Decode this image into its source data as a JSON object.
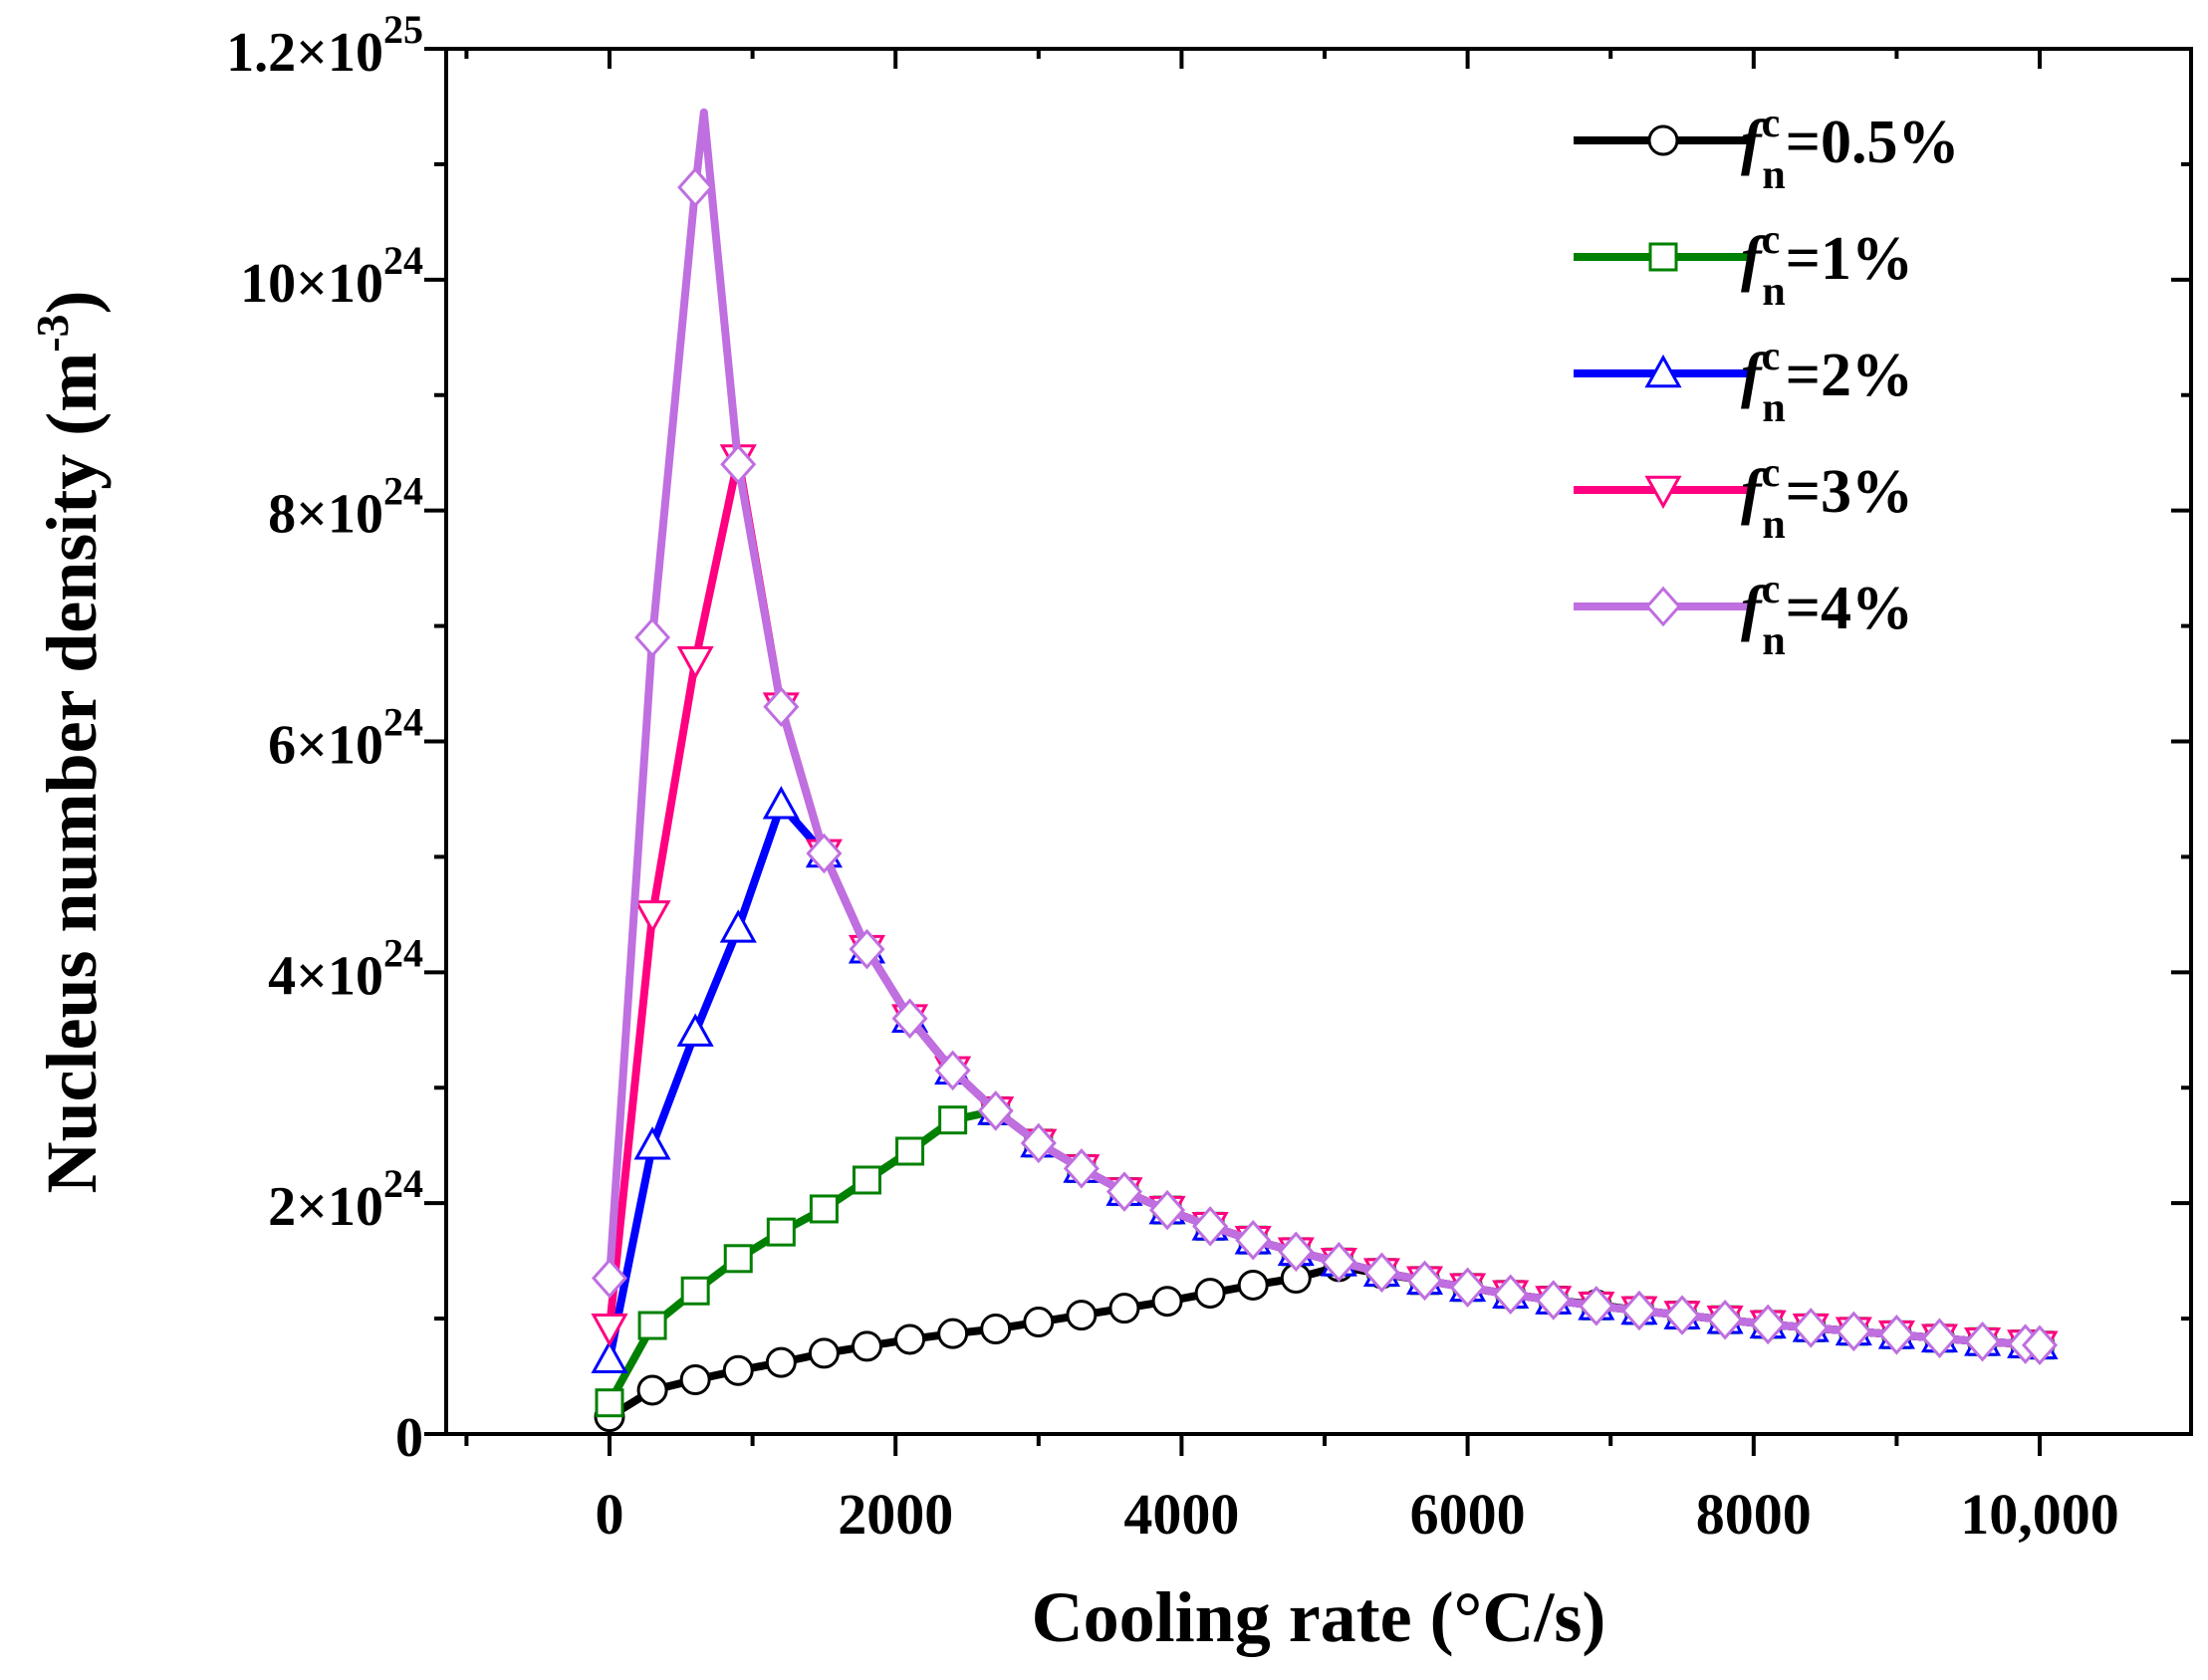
{
  "chart_data": {
    "type": "line",
    "title": "",
    "xlabel": "Cooling rate (°C/s)",
    "ylabel_main": "Nucleus number density (m",
    "ylabel_sup": "-3",
    "ylabel_tail": ")",
    "xlim": [
      -1000,
      10500
    ],
    "ylim": [
      0,
      12
    ],
    "y_scale_note": "values in units of 1e24 m^-3",
    "x_ticks": [
      {
        "value": 0,
        "label": "0"
      },
      {
        "value": 2000,
        "label": "2000"
      },
      {
        "value": 4000,
        "label": "4000"
      },
      {
        "value": 6000,
        "label": "6000"
      },
      {
        "value": 8000,
        "label": "8000"
      },
      {
        "value": 10000,
        "label": "10,000"
      }
    ],
    "y_ticks": [
      {
        "value": 0,
        "mant": "0",
        "exp": ""
      },
      {
        "value": 2,
        "mant": "2×10",
        "exp": "24"
      },
      {
        "value": 4,
        "mant": "4×10",
        "exp": "24"
      },
      {
        "value": 6,
        "mant": "6×10",
        "exp": "24"
      },
      {
        "value": 8,
        "mant": "8×10",
        "exp": "24"
      },
      {
        "value": 10,
        "mant": "10×10",
        "exp": "24"
      },
      {
        "value": 12,
        "mant": "1.2×10",
        "exp": "25"
      }
    ],
    "legend_position": "top-right",
    "series": [
      {
        "name": "f_n^c=0.5%",
        "legend_f": "f",
        "legend_sub": "n",
        "legend_sup": "c",
        "legend_rest": "=0.5%",
        "color": "#000000",
        "marker": "circle",
        "x": [
          0,
          300,
          600,
          900,
          1200,
          1500,
          1800,
          2100,
          2400,
          2700,
          3000,
          3300,
          3600,
          3900,
          4200,
          4500,
          4800,
          5100,
          5400,
          5700,
          6000,
          6300,
          6600,
          6900,
          7200,
          7500,
          7800,
          8100,
          8400,
          8700,
          9000,
          9300,
          9600,
          9900,
          10000
        ],
        "y": [
          0.15,
          0.38,
          0.47,
          0.55,
          0.62,
          0.7,
          0.76,
          0.82,
          0.87,
          0.91,
          0.97,
          1.03,
          1.09,
          1.15,
          1.22,
          1.29,
          1.35,
          1.45,
          1.39,
          1.33,
          1.27,
          1.21,
          1.16,
          1.12,
          1.07,
          1.03,
          0.99,
          0.95,
          0.92,
          0.89,
          0.86,
          0.83,
          0.8,
          0.78,
          0.77
        ]
      },
      {
        "name": "f_n^c=1%",
        "legend_f": "f",
        "legend_sub": "n",
        "legend_sup": "c",
        "legend_rest": "=1%",
        "color": "#008000",
        "marker": "square",
        "x": [
          0,
          300,
          600,
          900,
          1200,
          1500,
          1800,
          2100,
          2400,
          2700,
          3000,
          3300,
          3600,
          3900,
          4200,
          4500,
          4800,
          5100,
          5400,
          5700,
          6000,
          6300,
          6600,
          6900,
          7200,
          7500,
          7800,
          8100,
          8400,
          8700,
          9000,
          9300,
          9600,
          9900,
          10000
        ],
        "y": [
          0.27,
          0.94,
          1.24,
          1.52,
          1.75,
          1.95,
          2.2,
          2.45,
          2.72,
          2.8,
          2.52,
          2.3,
          2.1,
          1.94,
          1.8,
          1.68,
          1.58,
          1.49,
          1.4,
          1.33,
          1.27,
          1.21,
          1.16,
          1.11,
          1.07,
          1.03,
          0.99,
          0.95,
          0.92,
          0.89,
          0.86,
          0.83,
          0.8,
          0.78,
          0.77
        ]
      },
      {
        "name": "f_n^c=2%",
        "legend_f": "f",
        "legend_sub": "n",
        "legend_sup": "c",
        "legend_rest": "=2%",
        "color": "#0000ff",
        "marker": "triangle-up",
        "x": [
          0,
          300,
          600,
          900,
          1200,
          1500,
          1800,
          2100,
          2400,
          2700,
          3000,
          3300,
          3600,
          3900,
          4200,
          4500,
          4800,
          5100,
          5400,
          5700,
          6000,
          6300,
          6600,
          6900,
          7200,
          7500,
          7800,
          8100,
          8400,
          8700,
          9000,
          9300,
          9600,
          9900,
          10000
        ],
        "y": [
          0.65,
          2.5,
          3.48,
          4.38,
          5.45,
          5.03,
          4.2,
          3.6,
          3.15,
          2.8,
          2.52,
          2.3,
          2.1,
          1.94,
          1.8,
          1.68,
          1.58,
          1.49,
          1.4,
          1.33,
          1.27,
          1.21,
          1.16,
          1.11,
          1.07,
          1.03,
          0.99,
          0.95,
          0.92,
          0.89,
          0.86,
          0.83,
          0.8,
          0.78,
          0.77
        ]
      },
      {
        "name": "f_n^c=3%",
        "legend_f": "f",
        "legend_sub": "n",
        "legend_sup": "c",
        "legend_rest": "=3%",
        "color": "#ff0080",
        "marker": "triangle-down",
        "x": [
          0,
          300,
          600,
          900,
          1200,
          1500,
          1800,
          2100,
          2400,
          2700,
          3000,
          3300,
          3600,
          3900,
          4200,
          4500,
          4800,
          5100,
          5400,
          5700,
          6000,
          6300,
          6600,
          6900,
          7200,
          7500,
          7800,
          8100,
          8400,
          8700,
          9000,
          9300,
          9600,
          9900,
          10000
        ],
        "y": [
          0.92,
          4.5,
          6.7,
          8.45,
          6.3,
          5.03,
          4.2,
          3.6,
          3.15,
          2.8,
          2.52,
          2.3,
          2.1,
          1.94,
          1.8,
          1.68,
          1.58,
          1.49,
          1.4,
          1.33,
          1.27,
          1.21,
          1.16,
          1.11,
          1.07,
          1.03,
          0.99,
          0.95,
          0.92,
          0.89,
          0.86,
          0.83,
          0.8,
          0.78,
          0.77
        ]
      },
      {
        "name": "f_n^c=4%",
        "legend_f": "f",
        "legend_sub": "n",
        "legend_sup": "c",
        "legend_rest": "=4%",
        "color": "#bf6fe0",
        "marker": "diamond",
        "x": [
          0,
          300,
          600,
          900,
          1200,
          1500,
          1800,
          2100,
          2400,
          2700,
          3000,
          3300,
          3600,
          3900,
          4200,
          4500,
          4800,
          5100,
          5400,
          5700,
          6000,
          6300,
          6600,
          6900,
          7200,
          7500,
          7800,
          8100,
          8400,
          8700,
          9000,
          9300,
          9600,
          9900,
          10000
        ],
        "y": [
          1.35,
          6.9,
          10.8,
          8.4,
          6.3,
          5.03,
          4.2,
          3.6,
          3.15,
          2.8,
          2.52,
          2.3,
          2.1,
          1.94,
          1.8,
          1.68,
          1.58,
          1.49,
          1.4,
          1.33,
          1.27,
          1.21,
          1.16,
          1.11,
          1.07,
          1.03,
          0.99,
          0.95,
          0.92,
          0.89,
          0.86,
          0.83,
          0.8,
          0.78,
          0.77
        ],
        "peak": {
          "x": 660,
          "y": 11.45
        }
      }
    ]
  }
}
